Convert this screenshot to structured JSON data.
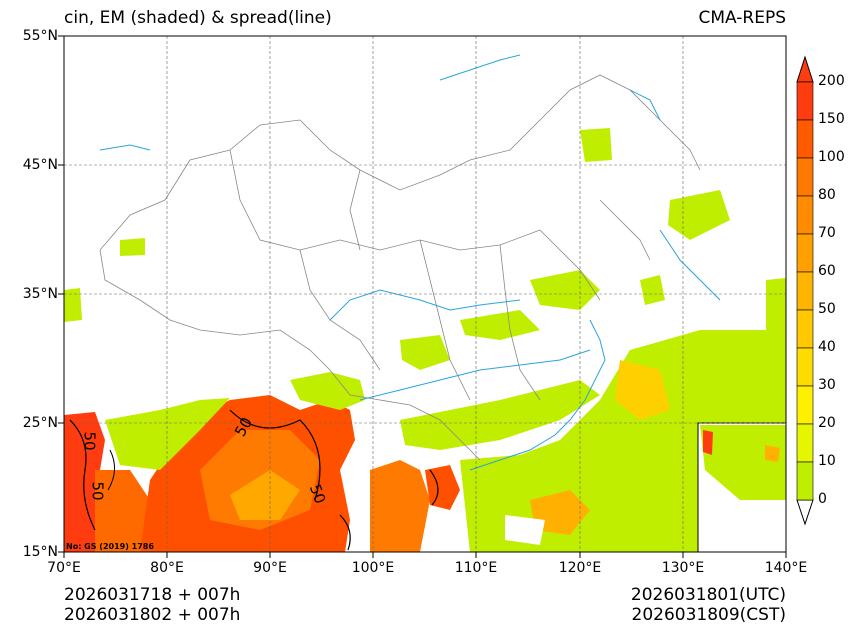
{
  "header": {
    "title_left": "cin, EM (shaded) & spread(line)",
    "title_right": "CMA-REPS"
  },
  "map": {
    "latitude_labels": [
      "55°N",
      "45°N",
      "35°N",
      "25°N",
      "15°N"
    ],
    "longitude_labels": [
      "70°E",
      "80°E",
      "90°E",
      "100°E",
      "110°E",
      "120°E",
      "130°E",
      "140°E"
    ],
    "contour_labels": [
      "50",
      "50",
      "50",
      "50"
    ],
    "map_note": "No: GS (2019) 1786",
    "colors": {
      "low": "#c0ee00",
      "mid": "#ffd000",
      "high": "#ff8800",
      "max": "#ff3c10",
      "river": "#2aa3dd",
      "border": "#888888"
    }
  },
  "colorbar": {
    "labels": [
      "200",
      "150",
      "100",
      "80",
      "70",
      "60",
      "50",
      "40",
      "30",
      "20",
      "10",
      "0"
    ],
    "colors": [
      "#ff3c10",
      "#ff5a00",
      "#ff7800",
      "#ff8c00",
      "#ffa000",
      "#ffb400",
      "#ffc800",
      "#ffdc00",
      "#fff000",
      "#e6f500",
      "#c0ee00"
    ]
  },
  "footer": {
    "init_utc": "2026031718  +  007h",
    "init_cst": "2026031802  +  007h",
    "valid_utc": "2026031801(UTC)",
    "valid_cst": "2026031809(CST)"
  }
}
